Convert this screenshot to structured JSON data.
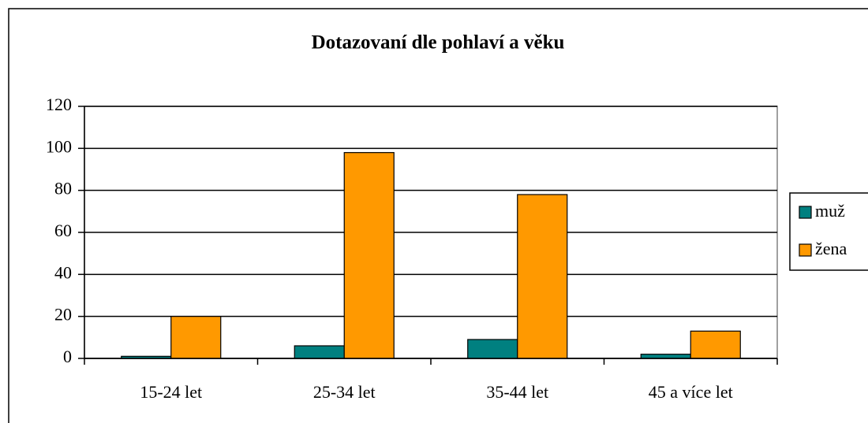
{
  "chart_data": {
    "type": "bar",
    "title": "Dotazovaní dle pohlaví a věku",
    "categories": [
      "15-24 let",
      "25-34 let",
      "35-44 let",
      "45 a více let"
    ],
    "series": [
      {
        "name": "muž",
        "color": "#008080",
        "values": [
          1,
          6,
          9,
          2
        ]
      },
      {
        "name": "žena",
        "color": "#ff9900",
        "values": [
          20,
          98,
          78,
          13
        ]
      }
    ],
    "ylim": [
      0,
      120
    ],
    "yticks": [
      0,
      20,
      40,
      60,
      80,
      100,
      120
    ],
    "grid": true,
    "legend": "right"
  }
}
